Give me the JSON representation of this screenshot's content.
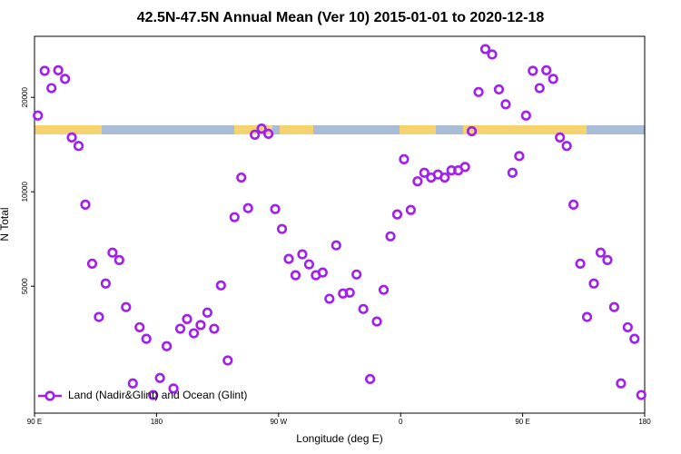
{
  "chart_data": {
    "type": "scatter",
    "title": "42.5N-47.5N Annual Mean (Ver 10)   2015-01-01 to 2020-12-18",
    "x_label": "Longitude (deg E)",
    "y_label": "N Total",
    "xlim": [
      90,
      540
    ],
    "xticks": [
      {
        "value": 90,
        "label": "90 E"
      },
      {
        "value": 180,
        "label": "180"
      },
      {
        "value": 270,
        "label": "90 W"
      },
      {
        "value": 360,
        "label": "0"
      },
      {
        "value": 450,
        "label": "90 E"
      },
      {
        "value": 540,
        "label": "180"
      }
    ],
    "ylim": [
      1970,
      31300
    ],
    "yticks": [
      5000,
      10000,
      20000
    ],
    "log_y": true,
    "legend_position": "bottom-left",
    "series": [
      {
        "name": "Land (Nadir&Glint) and Ocean (Glint)",
        "color": "#a020f0",
        "x": [
          92.5,
          97.5,
          102.5,
          107.5,
          112.5,
          117.5,
          122.5,
          127.5,
          132.5,
          137.5,
          142.5,
          147.5,
          152.5,
          157.5,
          162.5,
          167.5,
          172.5,
          177.5,
          182.5,
          187.5,
          192.5,
          197.5,
          202.5,
          207.5,
          212.5,
          217.5,
          222.5,
          227.5,
          232.5,
          237.5,
          242.5,
          247.5,
          252.5,
          257.5,
          262.5,
          267.5,
          272.5,
          277.5,
          282.5,
          287.5,
          292.5,
          297.5,
          302.5,
          307.5,
          312.5,
          317.5,
          322.5,
          327.5,
          332.5,
          337.5,
          342.5,
          347.5,
          352.5,
          357.5,
          362.5,
          367.5,
          372.5,
          377.5,
          382.5,
          387.5,
          392.5,
          397.5,
          402.5,
          407.5,
          412.5,
          417.5,
          422.5,
          427.5,
          432.5,
          437.5,
          442.5,
          447.5,
          452.5,
          457.5,
          462.5,
          467.5,
          472.5,
          477.5,
          482.5,
          487.5,
          492.5,
          497.5,
          502.5,
          507.5,
          512.5,
          517.5,
          522.5,
          527.5,
          532.5,
          537.5
        ],
        "values": [
          17500,
          24300,
          21400,
          24400,
          22900,
          14900,
          14000,
          9100,
          5900,
          3990,
          5100,
          6400,
          6060,
          4290,
          2450,
          3700,
          3400,
          2250,
          2550,
          3220,
          2360,
          3660,
          3930,
          3540,
          3760,
          4120,
          3660,
          5030,
          2900,
          8300,
          11100,
          8870,
          15200,
          15900,
          15300,
          8810,
          7610,
          6110,
          5420,
          6320,
          5870,
          5420,
          5530,
          4560,
          6750,
          4740,
          4770,
          5450,
          4230,
          2530,
          3860,
          4870,
          7210,
          8470,
          12700,
          8750,
          10800,
          11500,
          11100,
          11350,
          11100,
          11700,
          11700,
          12000,
          15600,
          20800,
          28500,
          27400,
          21200,
          19000,
          11500,
          13000,
          17500,
          24300,
          21400,
          24400,
          22900,
          14900,
          14000,
          9100,
          5900,
          3990,
          5100,
          6400,
          6060,
          4290,
          2450,
          3700,
          3400,
          2250
        ]
      }
    ]
  }
}
